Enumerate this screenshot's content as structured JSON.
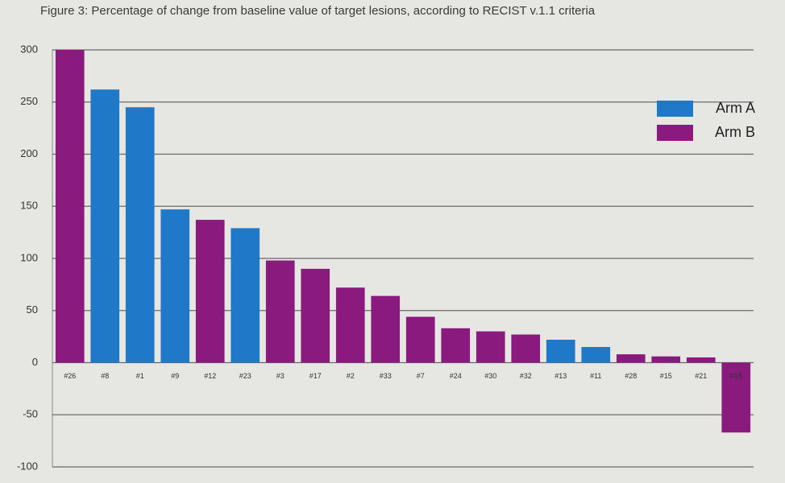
{
  "chart_data": {
    "type": "bar",
    "title": "Figure 3: Percentage of change from baseline value of target lesions, according to RECIST v.1.1 criteria",
    "categories": [
      "#26",
      "#8",
      "#1",
      "#9",
      "#12",
      "#23",
      "#3",
      "#17",
      "#2",
      "#33",
      "#7",
      "#24",
      "#30",
      "#32",
      "#13",
      "#11",
      "#28",
      "#15",
      "#21",
      "#18"
    ],
    "series": [
      {
        "name": "Arm A",
        "color": "#1f78c8",
        "values": [
          null,
          262,
          245,
          147,
          null,
          129,
          null,
          null,
          null,
          null,
          null,
          null,
          null,
          null,
          22,
          15,
          null,
          null,
          null,
          null
        ]
      },
      {
        "name": "Arm B",
        "color": "#8b1a7e",
        "values": [
          300,
          null,
          null,
          null,
          137,
          null,
          98,
          90,
          72,
          64,
          44,
          33,
          30,
          27,
          null,
          null,
          8,
          6,
          5,
          -67
        ]
      }
    ],
    "ylim": [
      -100,
      300
    ],
    "yticks": [
      -100,
      -50,
      0,
      50,
      100,
      150,
      200,
      250,
      300
    ],
    "grid": true,
    "legend": "top-right"
  }
}
